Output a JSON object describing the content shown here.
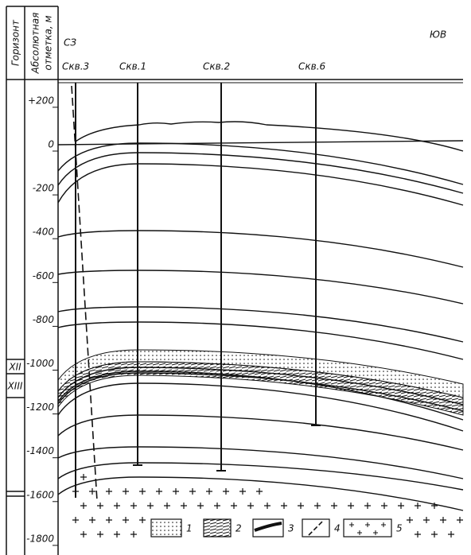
{
  "header": {
    "horizon_column": "Горизонт",
    "elevation_column": [
      "Абсолютная",
      "отметка, м"
    ]
  },
  "directions": {
    "left": "СЗ",
    "right": "ЮВ"
  },
  "wells": [
    "Скв.3",
    "Скв.1",
    "Скв.2",
    "Скв.6"
  ],
  "depth_axis": {
    "ticks": [
      {
        "value": 200,
        "label": "+200"
      },
      0,
      -200,
      -400,
      -600,
      -800,
      -1000,
      -1200,
      -1400,
      -1600,
      -1800
    ]
  },
  "horizons": [
    "XII",
    "XIII"
  ],
  "legend": [
    "1",
    "2",
    "3",
    "4",
    "5"
  ]
}
